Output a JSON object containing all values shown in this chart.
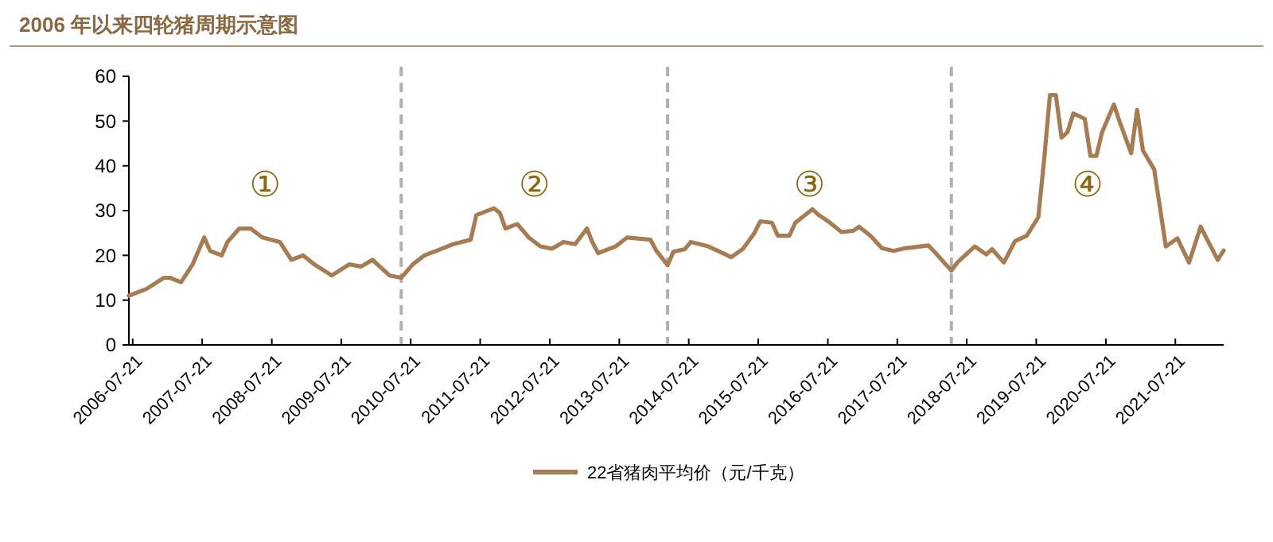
{
  "chart_data": {
    "type": "line",
    "title": "2006 年以来四轮猪周期示意图",
    "x": [
      "2006-07",
      "2006-10",
      "2007-01",
      "2007-02",
      "2007-04",
      "2007-06",
      "2007-08",
      "2007-09",
      "2007-11",
      "2007-12",
      "2008-02",
      "2008-04",
      "2008-06",
      "2008-09",
      "2008-11",
      "2009-01",
      "2009-03",
      "2009-06",
      "2009-09",
      "2009-11",
      "2010-01",
      "2010-04",
      "2010-06",
      "2010-08",
      "2010-10",
      "2011-01",
      "2011-03",
      "2011-06",
      "2011-07",
      "2011-10",
      "2011-11",
      "2011-12",
      "2012-02",
      "2012-04",
      "2012-06",
      "2012-08",
      "2012-10",
      "2012-12",
      "2013-02",
      "2013-03",
      "2013-04",
      "2013-07",
      "2013-09",
      "2014-01",
      "2014-02",
      "2014-04",
      "2014-05",
      "2014-07",
      "2014-08",
      "2014-11",
      "2015-01",
      "2015-03",
      "2015-05",
      "2015-07",
      "2015-08",
      "2015-10",
      "2015-11",
      "2016-01",
      "2016-02",
      "2016-05",
      "2016-06",
      "2016-08",
      "2016-10",
      "2016-12",
      "2017-01",
      "2017-03",
      "2017-05",
      "2017-07",
      "2017-09",
      "2018-01",
      "2018-02",
      "2018-05",
      "2018-06",
      "2018-09",
      "2018-11",
      "2018-12",
      "2019-02",
      "2019-04",
      "2019-06",
      "2019-08",
      "2019-09",
      "2019-10",
      "2019-11",
      "2019-12",
      "2020-01",
      "2020-02",
      "2020-04",
      "2020-05",
      "2020-06",
      "2020-07",
      "2020-09",
      "2020-10",
      "2020-12",
      "2021-01",
      "2021-02",
      "2021-04",
      "2021-06",
      "2021-08",
      "2021-10",
      "2021-12",
      "2022-01",
      "2022-03",
      "2022-04"
    ],
    "series": [
      {
        "name": "22省猪肉平均价（元/千克）",
        "color": "#a67d52",
        "values": [
          11,
          12.5,
          15,
          15,
          14,
          18,
          24,
          21,
          20,
          23,
          26,
          26,
          24,
          23,
          19,
          20,
          18,
          15.5,
          18,
          17.5,
          19,
          15.5,
          15,
          18,
          20,
          21.5,
          22.5,
          23.5,
          29,
          30.5,
          29.5,
          26,
          27,
          24,
          22,
          21.5,
          23,
          22.5,
          26,
          23,
          20.5,
          22,
          24,
          23.5,
          21,
          17.8,
          20.8,
          21.4,
          23,
          22,
          20.8,
          19.6,
          21.4,
          25,
          27.6,
          27.3,
          24.4,
          24.4,
          27.3,
          30.3,
          29.1,
          27.3,
          25.2,
          25.5,
          26.4,
          24.4,
          21.6,
          21,
          21.6,
          22.2,
          20.8,
          16.6,
          18.4,
          22,
          20.2,
          21.4,
          18.4,
          23.2,
          24.4,
          28.5,
          41.6,
          55.8,
          55.8,
          46.3,
          47.5,
          51.7,
          50.5,
          42.2,
          42.2,
          47.5,
          53.7,
          49.9,
          42.8,
          52.5,
          43.4,
          39.2,
          22,
          23.8,
          18.4,
          26.4,
          23.8,
          19,
          21.1
        ]
      }
    ],
    "xlim": [
      "2006-07",
      "2022-04"
    ],
    "xticks": [
      "2006-07-21",
      "2007-07-21",
      "2008-07-21",
      "2009-07-21",
      "2010-07-21",
      "2011-07-21",
      "2012-07-21",
      "2013-07-21",
      "2014-07-21",
      "2015-07-21",
      "2016-07-21",
      "2017-07-21",
      "2018-07-21",
      "2019-07-21",
      "2020-07-21",
      "2021-07-21"
    ],
    "ylim": [
      0,
      60
    ],
    "yticks": [
      0,
      10,
      20,
      30,
      40,
      50,
      60
    ],
    "ref_lines": [
      {
        "axis": "x",
        "value": "2010-06",
        "color": "#b0b0b0",
        "line_style": "dashed"
      },
      {
        "axis": "x",
        "value": "2014-04",
        "color": "#b0b0b0",
        "line_style": "dashed"
      },
      {
        "axis": "x",
        "value": "2018-05",
        "color": "#b0b0b0",
        "line_style": "dashed"
      }
    ],
    "annotations": [
      "①",
      "②",
      "③",
      "④"
    ],
    "legend": "bottom",
    "grid": false,
    "line_style": "solid",
    "marker": "none"
  }
}
